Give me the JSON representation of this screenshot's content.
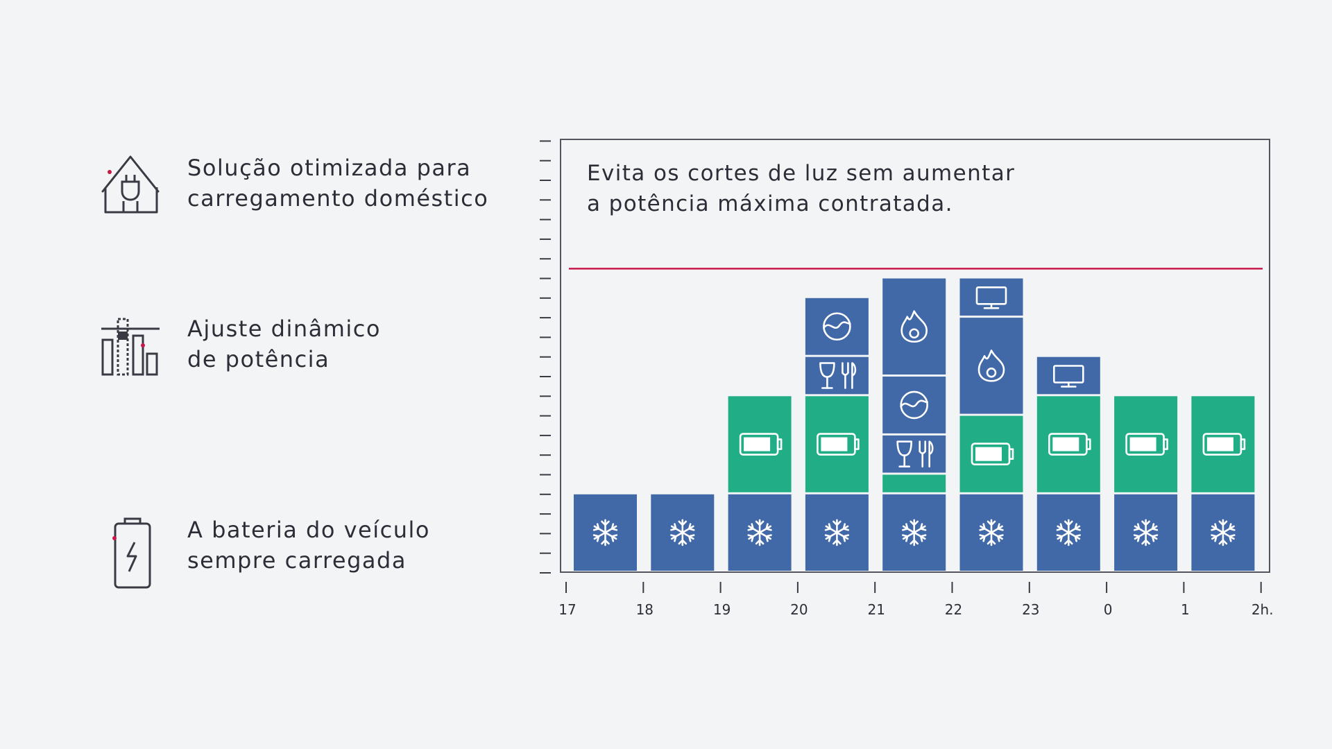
{
  "features": [
    {
      "icon": "house-plug-icon",
      "lines": [
        "Solução otimizada para",
        "carregamento doméstico"
      ]
    },
    {
      "icon": "dynamic-power-bars-icon",
      "lines": [
        "Ajuste dinâmico",
        "de potência"
      ]
    },
    {
      "icon": "battery-charging-icon",
      "lines": [
        "A bateria do veículo",
        "sempre carregada"
      ]
    }
  ],
  "chart_data": {
    "type": "bar",
    "stacked": true,
    "title": [
      "Evita os cortes de luz sem aumentar",
      "a potência máxima contratada."
    ],
    "x_tick_labels": [
      "17",
      "18",
      "19",
      "20",
      "21",
      "22",
      "23",
      "0",
      "1",
      "2h."
    ],
    "y_range": [
      0,
      22
    ],
    "y_tick_count": 23,
    "y_tick_labels_shown": false,
    "limit_line": {
      "value": 15.5,
      "color": "#c8184a"
    },
    "colors": {
      "appliance": "#4169a8",
      "ev_charging": "#21ae86"
    },
    "periods": [
      {
        "x_start": "17",
        "x_end": "18",
        "stack": [
          {
            "icon": "snowflake",
            "kind": "appliance",
            "value": 4
          }
        ]
      },
      {
        "x_start": "18",
        "x_end": "19",
        "stack": [
          {
            "icon": "snowflake",
            "kind": "appliance",
            "value": 4
          }
        ]
      },
      {
        "x_start": "19",
        "x_end": "20",
        "stack": [
          {
            "icon": "snowflake",
            "kind": "appliance",
            "value": 4
          },
          {
            "icon": "battery",
            "kind": "ev_charging",
            "value": 5
          }
        ]
      },
      {
        "x_start": "20",
        "x_end": "21",
        "stack": [
          {
            "icon": "snowflake",
            "kind": "appliance",
            "value": 4
          },
          {
            "icon": "battery",
            "kind": "ev_charging",
            "value": 5
          },
          {
            "icon": "dining",
            "kind": "appliance",
            "value": 2
          },
          {
            "icon": "washer",
            "kind": "appliance",
            "value": 3
          }
        ]
      },
      {
        "x_start": "21",
        "x_end": "22",
        "stack": [
          {
            "icon": "snowflake",
            "kind": "appliance",
            "value": 4
          },
          {
            "icon": "",
            "kind": "ev_charging",
            "value": 1
          },
          {
            "icon": "dining",
            "kind": "appliance",
            "value": 2
          },
          {
            "icon": "washer",
            "kind": "appliance",
            "value": 3
          },
          {
            "icon": "flame",
            "kind": "appliance",
            "value": 5
          }
        ]
      },
      {
        "x_start": "22",
        "x_end": "23",
        "stack": [
          {
            "icon": "snowflake",
            "kind": "appliance",
            "value": 4
          },
          {
            "icon": "battery",
            "kind": "ev_charging",
            "value": 4
          },
          {
            "icon": "flame",
            "kind": "appliance",
            "value": 5
          },
          {
            "icon": "monitor",
            "kind": "appliance",
            "value": 2
          }
        ]
      },
      {
        "x_start": "23",
        "x_end": "0",
        "stack": [
          {
            "icon": "snowflake",
            "kind": "appliance",
            "value": 4
          },
          {
            "icon": "battery",
            "kind": "ev_charging",
            "value": 5
          },
          {
            "icon": "monitor",
            "kind": "appliance",
            "value": 2
          }
        ]
      },
      {
        "x_start": "0",
        "x_end": "1",
        "stack": [
          {
            "icon": "snowflake",
            "kind": "appliance",
            "value": 4
          },
          {
            "icon": "battery",
            "kind": "ev_charging",
            "value": 5
          }
        ]
      },
      {
        "x_start": "1",
        "x_end": "2h.",
        "stack": [
          {
            "icon": "snowflake",
            "kind": "appliance",
            "value": 4
          },
          {
            "icon": "battery",
            "kind": "ev_charging",
            "value": 5
          }
        ]
      }
    ]
  }
}
